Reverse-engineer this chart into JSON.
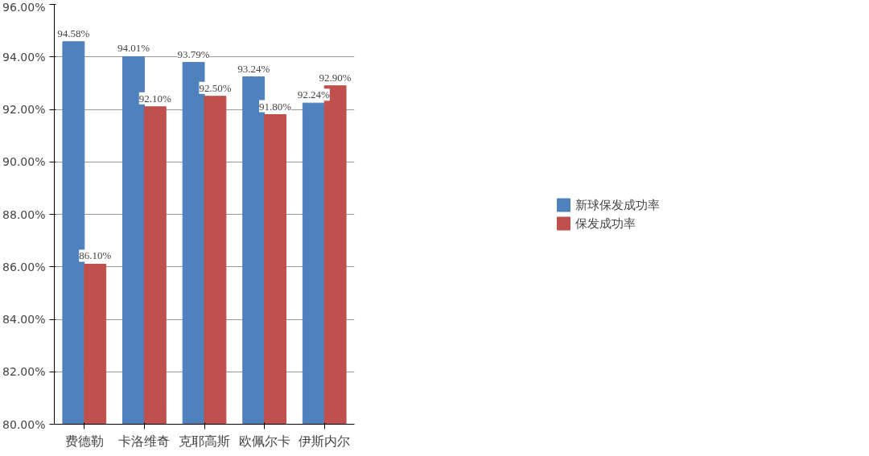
{
  "chart_data": {
    "type": "bar",
    "categories": [
      "费德勒",
      "卡洛维奇",
      "克耶高斯",
      "欧佩尔卡",
      "伊斯内尔"
    ],
    "series": [
      {
        "name": "新球保发成功率",
        "color": "#4f81bd",
        "values": [
          94.58,
          94.01,
          93.79,
          93.24,
          92.24
        ],
        "value_labels": [
          "94.58%",
          "94.01%",
          "93.79%",
          "93.24%",
          "92.24%"
        ]
      },
      {
        "name": "保发成功率",
        "color": "#c0504d",
        "values": [
          86.1,
          92.1,
          92.5,
          91.8,
          92.9
        ],
        "value_labels": [
          "86.10%",
          "92.10%",
          "92.50%",
          "91.80%",
          "92.90%"
        ]
      }
    ],
    "ylim": [
      80,
      96
    ],
    "yticks": [
      {
        "value": 80,
        "label": "80.00%"
      },
      {
        "value": 82,
        "label": "82.00%"
      },
      {
        "value": 84,
        "label": "84.00%"
      },
      {
        "value": 86,
        "label": "86.00%"
      },
      {
        "value": 88,
        "label": "88.00%"
      },
      {
        "value": 90,
        "label": "90.00%"
      },
      {
        "value": 92,
        "label": "92.00%"
      },
      {
        "value": 94,
        "label": "94.00%"
      },
      {
        "value": 96,
        "label": "96.00%"
      }
    ],
    "grid": "y",
    "legend": "right"
  }
}
